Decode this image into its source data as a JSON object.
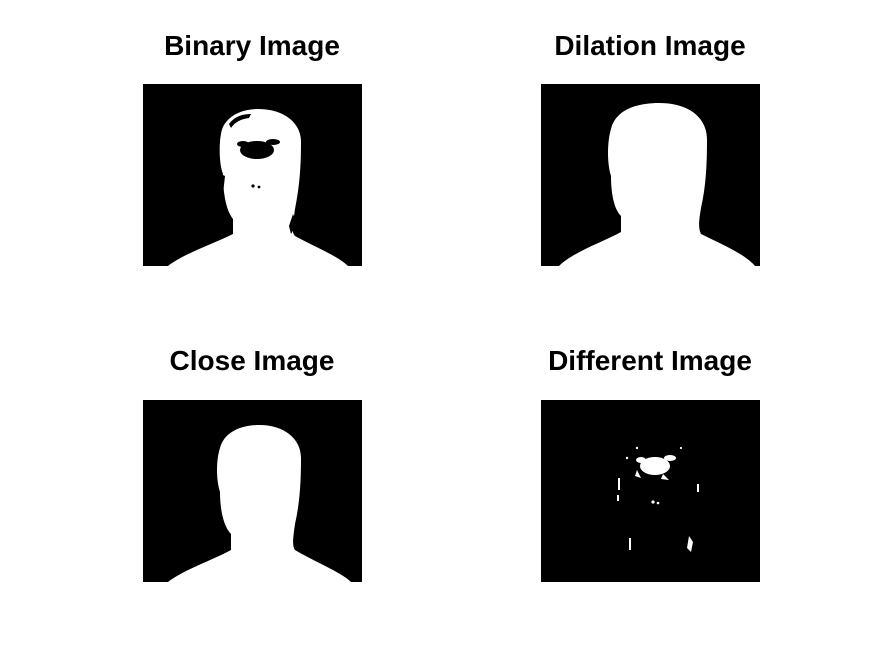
{
  "figure": {
    "background_color": "#ffffff",
    "image_background_color": "#000000",
    "foreground_color": "#ffffff"
  },
  "panels": [
    {
      "title": "Binary Image",
      "content": "binary-silhouette"
    },
    {
      "title": "Dilation Image",
      "content": "dilated-silhouette"
    },
    {
      "title": "Close Image",
      "content": "closed-silhouette"
    },
    {
      "title": "Different Image",
      "content": "difference-residue"
    }
  ]
}
